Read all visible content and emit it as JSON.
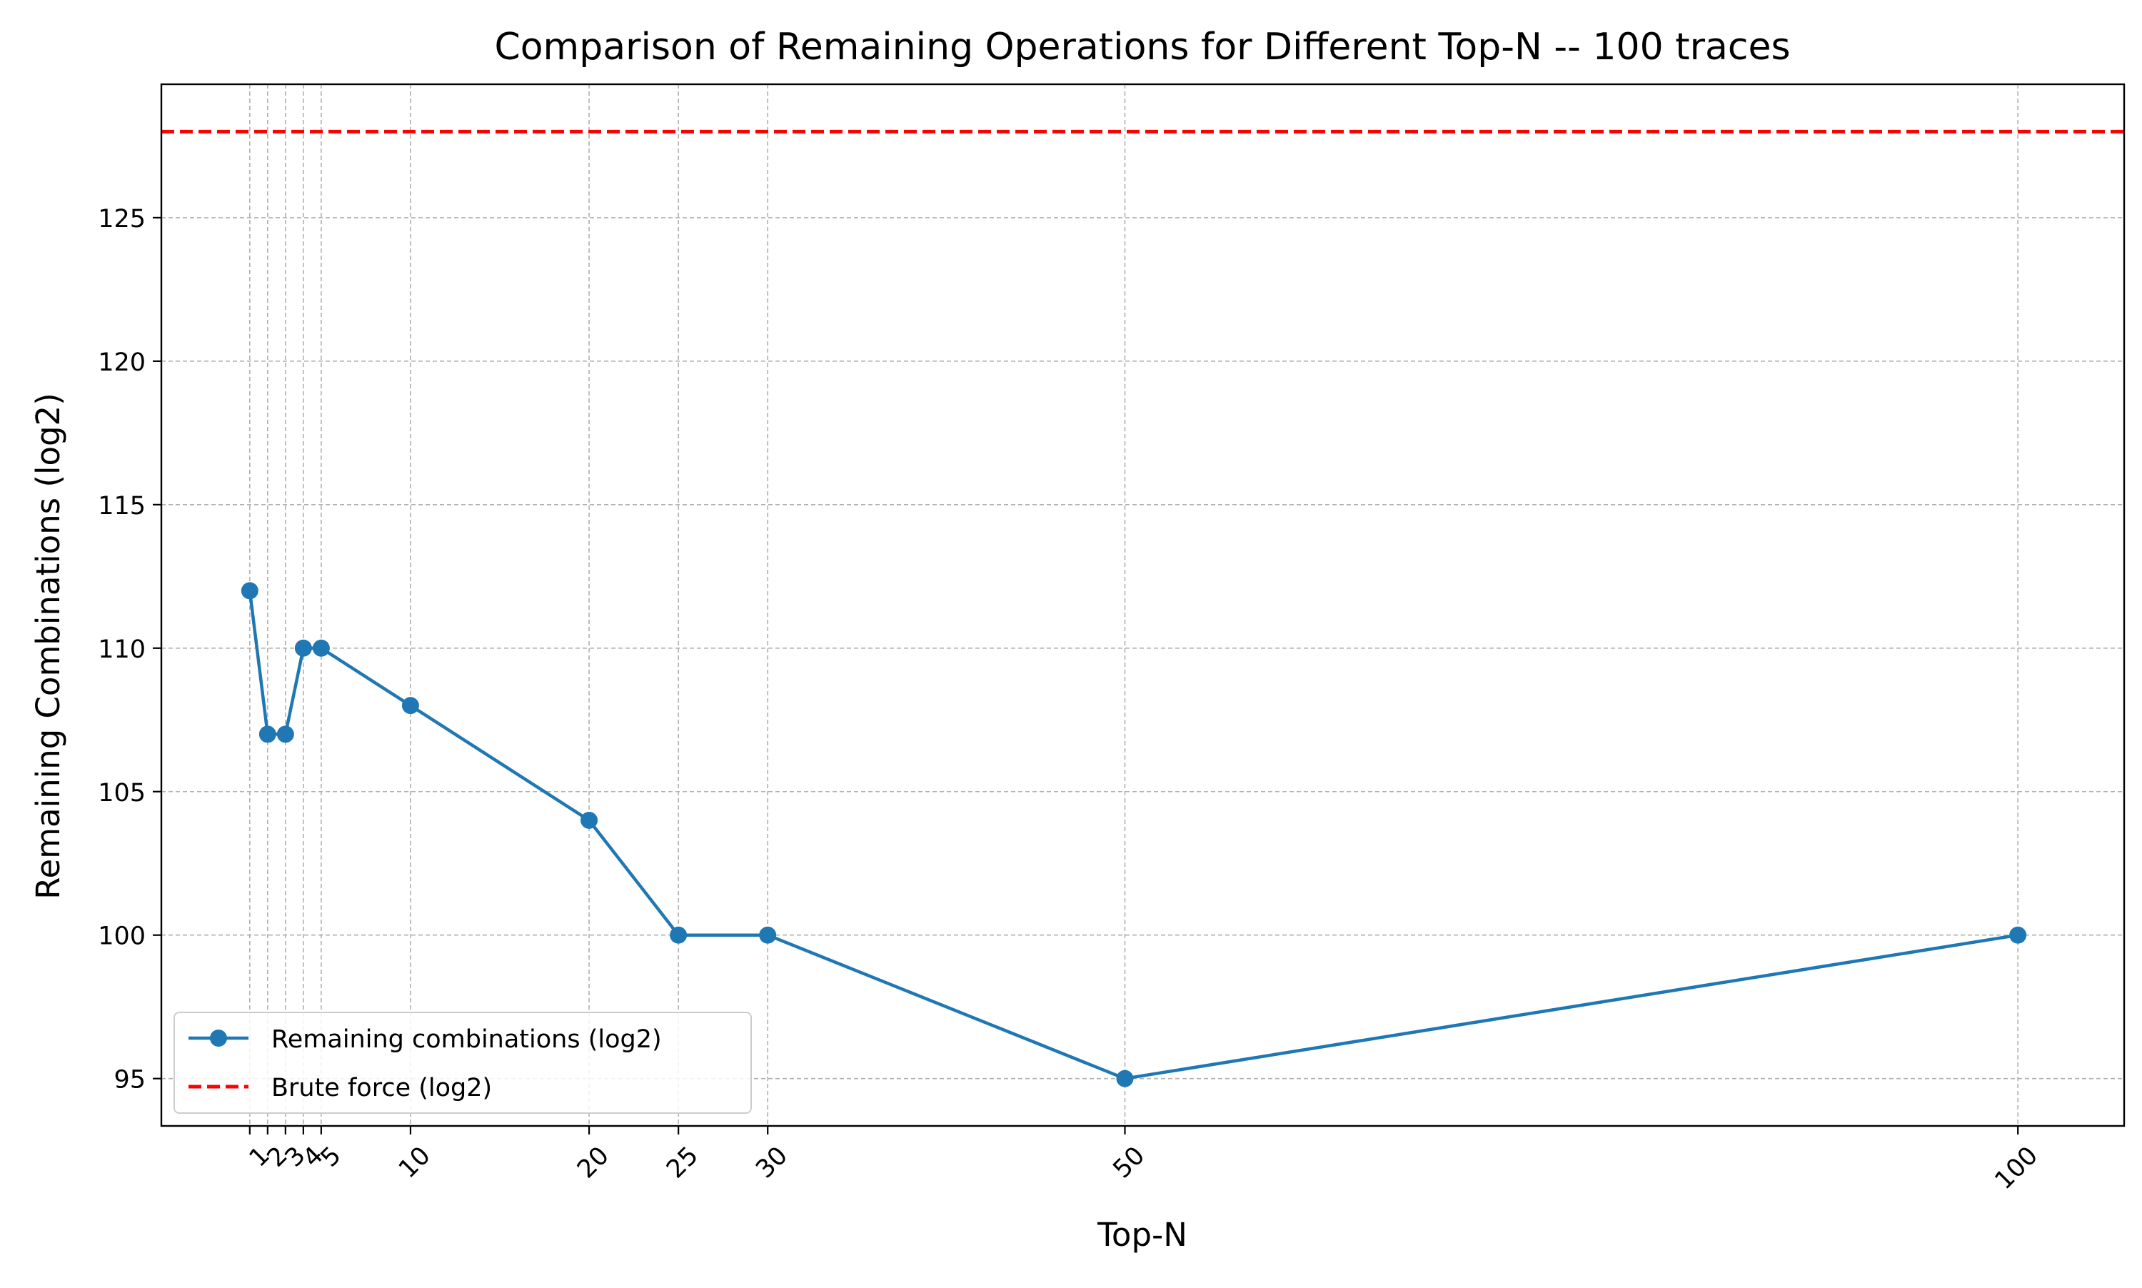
{
  "chart_data": {
    "type": "line",
    "title": "Comparison of Remaining Operations for Different Top-N  -- 100 traces",
    "xlabel": "Top-N",
    "ylabel": "Remaining Combinations (log2)",
    "x": [
      1,
      2,
      3,
      4,
      5,
      10,
      20,
      25,
      30,
      50,
      100
    ],
    "x_tick_labels": [
      "1",
      "2",
      "3",
      "4",
      "5",
      "10",
      "20",
      "25",
      "30",
      "50",
      "100"
    ],
    "series": [
      {
        "name": "Remaining combinations (log2)",
        "values": [
          112,
          107,
          107,
          110,
          110,
          108,
          104,
          100,
          100,
          95,
          100
        ],
        "color": "#1f77b4",
        "style": "solid",
        "marker": "circle"
      },
      {
        "name": "Brute force (log2)",
        "type": "hline",
        "value": 128,
        "color": "#ff0000",
        "style": "dashed"
      }
    ],
    "y_ticks": [
      95,
      100,
      105,
      110,
      115,
      120,
      125
    ],
    "xlim": [
      -3.95,
      105.95
    ],
    "ylim": [
      93.35,
      129.65
    ],
    "grid": true,
    "legend_position": "lower-left",
    "x_tick_rotation": "45 degrees"
  }
}
